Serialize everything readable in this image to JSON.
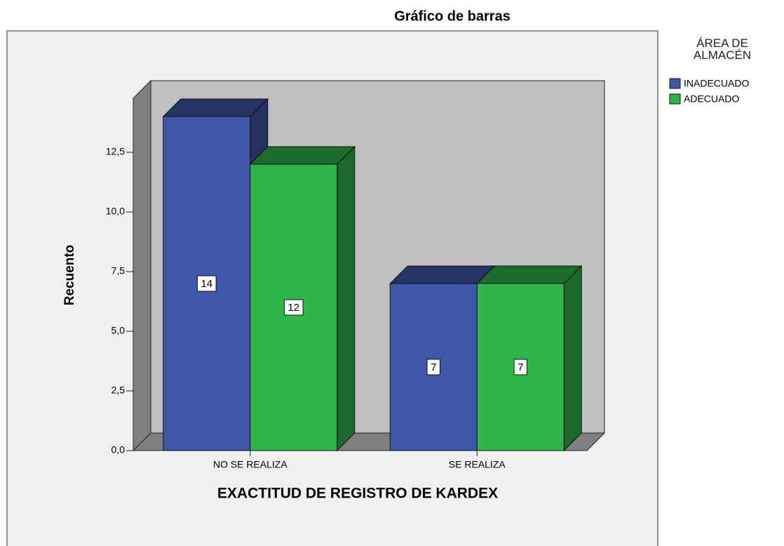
{
  "chart_data": {
    "type": "bar3d",
    "title": "Gráfico de barras",
    "x_label": "EXACTITUD DE REGISTRO DE KARDEX",
    "y_label": "Recuento",
    "legend_title": "ÁREA DE ALMACÉN",
    "categories": [
      "NO SE REALIZA",
      "SE REALIZA"
    ],
    "series": [
      {
        "name": "INADECUADO",
        "color": "#3f57a8",
        "values": [
          14,
          7
        ]
      },
      {
        "name": "ADECUADO",
        "color": "#2fb64a",
        "values": [
          12,
          7
        ]
      }
    ],
    "ylim": [
      0,
      15
    ],
    "yticks": [
      {
        "value": 0,
        "label": "0,0"
      },
      {
        "value": 2.5,
        "label": "2,5"
      },
      {
        "value": 5,
        "label": "5,0"
      },
      {
        "value": 7.5,
        "label": "7,5"
      },
      {
        "value": 10,
        "label": "10,0"
      },
      {
        "value": 12.5,
        "label": "12,5"
      }
    ],
    "legend": "right"
  }
}
